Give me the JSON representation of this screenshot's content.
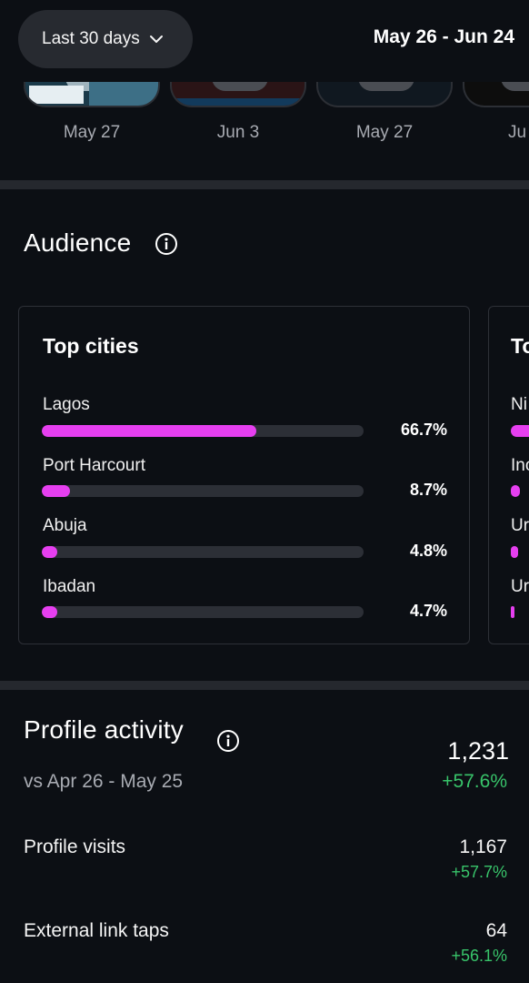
{
  "header": {
    "range_label": "Last 30 days",
    "date_range": "May 26 - Jun 24"
  },
  "thumbnails": [
    {
      "date": "May 27",
      "color": "#1b3a4a"
    },
    {
      "date": "Jun 3",
      "color": "#2a1416"
    },
    {
      "date": "May 27",
      "color": "#101820"
    },
    {
      "date": "Ju",
      "color": "#0d0d0d"
    }
  ],
  "audience": {
    "title": "Audience",
    "top_cities": {
      "title": "Top cities",
      "rows": [
        {
          "label": "Lagos",
          "value": 66.7,
          "pct": "66.7%"
        },
        {
          "label": "Port Harcourt",
          "value": 8.7,
          "pct": "8.7%"
        },
        {
          "label": "Abuja",
          "value": 4.8,
          "pct": "4.8%"
        },
        {
          "label": "Ibadan",
          "value": 4.7,
          "pct": "4.7%"
        }
      ]
    },
    "second_card": {
      "title": "To",
      "rows": [
        {
          "label": "Ni",
          "value": 60
        },
        {
          "label": "Inc",
          "value": 4
        },
        {
          "label": "Ur",
          "value": 3
        },
        {
          "label": "Ur",
          "value": 1
        }
      ]
    }
  },
  "profile_activity": {
    "title": "Profile activity",
    "compare": "vs Apr 26 - May 25",
    "total": "1,231",
    "total_change": "+57.6%",
    "metrics": [
      {
        "label": "Profile visits",
        "value": "1,167",
        "change": "+57.7%"
      },
      {
        "label": "External link taps",
        "value": "64",
        "change": "+56.1%"
      }
    ]
  },
  "colors": {
    "accent": "#e63ff0",
    "positive": "#38c46a",
    "background": "#0c0f14"
  }
}
